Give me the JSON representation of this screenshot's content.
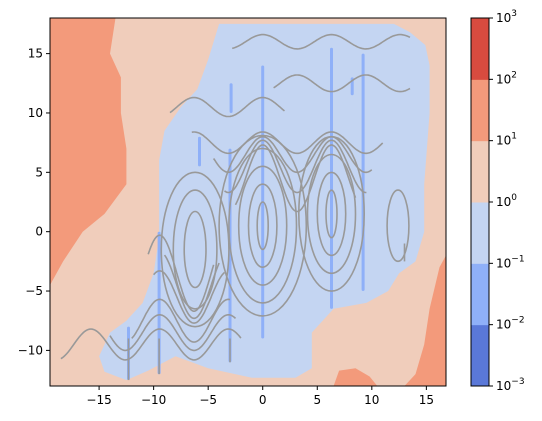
{
  "chart_data": {
    "type": "heatmap",
    "title": "",
    "xlabel": "",
    "ylabel": "",
    "xlim": [
      -19.5,
      16.8
    ],
    "ylim": [
      -13,
      18
    ],
    "x_ticks": [
      "−15",
      "−10",
      "−5",
      "0",
      "5",
      "10",
      "15"
    ],
    "x_tick_values": [
      -15,
      -10,
      -5,
      0,
      5,
      10,
      15
    ],
    "y_ticks": [
      "15",
      "10",
      "5",
      "0",
      "−5",
      "−10"
    ],
    "y_tick_values": [
      15,
      10,
      5,
      0,
      -5,
      -10
    ],
    "grid": false,
    "colorbar": {
      "scale": "log",
      "levels": [
        0.001,
        0.01,
        0.1,
        1,
        10,
        100,
        1000
      ],
      "level_labels": [
        {
          "base": "10",
          "exp": "3"
        },
        {
          "base": "10",
          "exp": "2"
        },
        {
          "base": "10",
          "exp": "1"
        },
        {
          "base": "10",
          "exp": "0"
        },
        {
          "base": "10",
          "exp": "−1"
        },
        {
          "base": "10",
          "exp": "−2"
        },
        {
          "base": "10",
          "exp": "−3"
        }
      ],
      "colors": [
        "#5a78d8",
        "#8fb0f8",
        "#c4d5f2",
        "#f0cdbb",
        "#f39a7b",
        "#d84b3f"
      ]
    },
    "regions": [
      {
        "name": "background",
        "level_range": [
          1,
          10
        ],
        "color": "#f0cdbb"
      },
      {
        "name": "upper-left band",
        "level_range": [
          10,
          100
        ],
        "color": "#f39a7b",
        "points": [
          [
            -19.5,
            18
          ],
          [
            -13.5,
            18
          ],
          [
            -14,
            15
          ],
          [
            -13,
            13
          ],
          [
            -13,
            10
          ],
          [
            -12.5,
            7
          ],
          [
            -12.5,
            4
          ],
          [
            -14.5,
            1.5
          ],
          [
            -16.5,
            0
          ],
          [
            -18.3,
            -2.5
          ],
          [
            -19.5,
            -4.5
          ]
        ]
      },
      {
        "name": "right edge",
        "level_range": [
          10,
          100
        ],
        "color": "#f39a7b",
        "points": [
          [
            16.8,
            -13
          ],
          [
            16.8,
            -2
          ],
          [
            16.2,
            -3
          ],
          [
            15.3,
            -6.5
          ],
          [
            14.8,
            -9.5
          ],
          [
            14,
            -12
          ],
          [
            13,
            -13
          ]
        ]
      },
      {
        "name": "bottom patch",
        "level_range": [
          10,
          100
        ],
        "color": "#f39a7b",
        "points": [
          [
            6.5,
            -13
          ],
          [
            7,
            -11.7
          ],
          [
            8.5,
            -11.5
          ],
          [
            9.8,
            -12.2
          ],
          [
            10.5,
            -13
          ]
        ]
      },
      {
        "name": "center band",
        "level_range": [
          0.1,
          1
        ],
        "color": "#c4d5f2",
        "points": [
          [
            -4,
            17.5
          ],
          [
            14.5,
            17.5
          ],
          [
            15.3,
            14
          ],
          [
            15.3,
            10
          ],
          [
            14.8,
            4
          ],
          [
            14.8,
            0
          ],
          [
            14,
            -2.5
          ],
          [
            12.5,
            -3.5
          ],
          [
            11.5,
            -5
          ],
          [
            9.5,
            -6
          ],
          [
            6.5,
            -6.5
          ],
          [
            4.5,
            -8.5
          ],
          [
            4.5,
            -11.5
          ],
          [
            3,
            -12.3
          ],
          [
            -1,
            -12.3
          ],
          [
            -5,
            -11.5
          ],
          [
            -8,
            -10.5
          ],
          [
            -10.5,
            -11.7
          ],
          [
            -12.5,
            -12.5
          ],
          [
            -14.5,
            -11.8
          ],
          [
            -15,
            -10.5
          ],
          [
            -14,
            -8.5
          ],
          [
            -12.5,
            -7.5
          ],
          [
            -11,
            -6
          ],
          [
            -10,
            -3.5
          ],
          [
            -9.5,
            -0.5
          ],
          [
            -9.5,
            3
          ],
          [
            -9.5,
            6
          ],
          [
            -9,
            8.5
          ],
          [
            -7.5,
            10.5
          ],
          [
            -6,
            12
          ],
          [
            -5,
            14.5
          ]
        ]
      },
      {
        "name": "top-right notch",
        "level_range": [
          1,
          10
        ],
        "color": "#f0cdbb",
        "points": [
          [
            11,
            18
          ],
          [
            16.8,
            18
          ],
          [
            16.8,
            14
          ],
          [
            15.2,
            15.5
          ],
          [
            13.5,
            16.8
          ]
        ]
      },
      {
        "name": "spike x=-12.3",
        "level_range": [
          0.01,
          0.1
        ],
        "color": "#8fb0f8",
        "x": -12.3,
        "y_range": [
          -12.5,
          -8
        ]
      },
      {
        "name": "spike x=-9.5",
        "level_range": [
          0.01,
          0.1
        ],
        "color": "#8fb0f8",
        "x": -9.5,
        "y_range": [
          -12,
          0
        ]
      },
      {
        "name": "spike x=-3",
        "level_range": [
          0.01,
          0.1
        ],
        "color": "#8fb0f8",
        "x": -3,
        "y_range": [
          -11,
          7
        ]
      },
      {
        "name": "spike x=-5.8",
        "level_range": [
          0.01,
          0.1
        ],
        "color": "#8fb0f8",
        "x": -5.8,
        "y_range": [
          5.5,
          8
        ]
      },
      {
        "name": "spike x=0",
        "level_range": [
          0.01,
          0.1
        ],
        "color": "#8fb0f8",
        "x": 0,
        "y_range": [
          -9,
          14
        ]
      },
      {
        "name": "spike x=6.3",
        "level_range": [
          0.01,
          0.1
        ],
        "color": "#8fb0f8",
        "x": 6.3,
        "y_range": [
          -6.5,
          15.5
        ]
      },
      {
        "name": "spike x=9.2",
        "level_range": [
          0.01,
          0.1
        ],
        "color": "#8fb0f8",
        "x": 9.2,
        "y_range": [
          -5,
          15
        ]
      },
      {
        "name": "spike x=-2.9 top",
        "level_range": [
          0.01,
          0.1
        ],
        "color": "#8fb0f8",
        "x": -2.9,
        "y_range": [
          10,
          12.5
        ]
      },
      {
        "name": "spike x=8.2 top",
        "level_range": [
          0.01,
          0.1
        ],
        "color": "#8fb0f8",
        "x": 8.2,
        "y_range": [
          11.5,
          13
        ]
      }
    ],
    "contour_lines_color": "#999999",
    "contour_lines": [
      {
        "kind": "wave",
        "x_start": -2.8,
        "x_end": 13.5,
        "y_base": 16,
        "amplitude": 0.6,
        "period": 6.3,
        "phase": 0
      },
      {
        "kind": "wave",
        "x_start": 1,
        "x_end": 13.5,
        "y_base": 12.5,
        "amplitude": 0.7,
        "period": 6.3,
        "phase": 3.14
      },
      {
        "kind": "wave",
        "x_start": -8.5,
        "x_end": 2,
        "y_base": 10.5,
        "amplitude": 0.8,
        "period": 6.3,
        "phase": 0
      },
      {
        "kind": "wave",
        "x_start": -6.5,
        "x_end": 11,
        "y_base": 7.5,
        "amplitude": 0.9,
        "period": 6.3,
        "phase": 0
      },
      {
        "kind": "wave",
        "x_start": -4.5,
        "x_end": 10,
        "y_base": 6.5,
        "amplitude": 1.5,
        "period": 6.3,
        "phase": 0
      },
      {
        "kind": "wave",
        "x_start": -3.5,
        "x_end": 9.5,
        "y_base": 5.5,
        "amplitude": 2.2,
        "period": 6.3,
        "phase": 0
      },
      {
        "kind": "wave",
        "x_start": -2.5,
        "x_end": 8.5,
        "y_base": 4.5,
        "amplitude": 2.8,
        "period": 6.3,
        "phase": 0
      },
      {
        "kind": "wave",
        "x_start": -18.5,
        "x_end": -2,
        "y_base": -9.5,
        "amplitude": 1.3,
        "period": 6.3,
        "phase": 3.14
      },
      {
        "kind": "wave",
        "x_start": -14,
        "x_end": -2.5,
        "y_base": -8.5,
        "amplitude": 1.5,
        "period": 6.3,
        "phase": 3.14
      },
      {
        "kind": "wave",
        "x_start": -12,
        "x_end": -3,
        "y_base": -7.5,
        "amplitude": 1.8,
        "period": 6.3,
        "phase": 3.14
      },
      {
        "kind": "wave",
        "x_start": -10,
        "x_end": -3.5,
        "y_base": -5.5,
        "amplitude": 2.2,
        "period": 6.3,
        "phase": 3.14
      },
      {
        "kind": "wave",
        "x_start": -9,
        "x_end": -4,
        "y_base": -4.5,
        "amplitude": 2.8,
        "period": 6.3,
        "phase": 3.14
      },
      {
        "kind": "wave",
        "x_start": -10.5,
        "x_end": -4.5,
        "y_base": -3.5,
        "amplitude": 3.2,
        "period": 6.3,
        "phase": 3.14
      },
      {
        "kind": "ellipse",
        "cx": 0,
        "cy": 0.5,
        "rx": 0.5,
        "ry": 2
      },
      {
        "kind": "ellipse",
        "cx": 0,
        "cy": 0.5,
        "rx": 1.3,
        "ry": 3.5
      },
      {
        "kind": "ellipse",
        "cx": 0,
        "cy": 0.5,
        "rx": 2.2,
        "ry": 5
      },
      {
        "kind": "ellipse",
        "cx": 0,
        "cy": 0.5,
        "rx": 3.1,
        "ry": 6.5
      },
      {
        "kind": "ellipse",
        "cx": 0,
        "cy": 0.5,
        "rx": 4,
        "ry": 7.6
      },
      {
        "kind": "ellipse",
        "cx": 6.3,
        "cy": 1.5,
        "rx": 0.5,
        "ry": 2
      },
      {
        "kind": "ellipse",
        "cx": 6.3,
        "cy": 1.5,
        "rx": 1.3,
        "ry": 3.5
      },
      {
        "kind": "ellipse",
        "cx": 6.3,
        "cy": 1.5,
        "rx": 2.2,
        "ry": 5
      },
      {
        "kind": "ellipse",
        "cx": 6.3,
        "cy": 1.5,
        "rx": 3,
        "ry": 6.5
      },
      {
        "kind": "ellipse",
        "cx": -6.2,
        "cy": -1.5,
        "rx": 1,
        "ry": 3.2
      },
      {
        "kind": "ellipse",
        "cx": -6.2,
        "cy": -1.5,
        "rx": 2,
        "ry": 5
      },
      {
        "kind": "ellipse",
        "cx": -6.2,
        "cy": -1.5,
        "rx": 3.1,
        "ry": 6.5
      },
      {
        "kind": "ellipse",
        "cx": 12.4,
        "cy": 0.5,
        "rx": 1,
        "ry": 3
      },
      {
        "kind": "vline",
        "x": -12.3,
        "y_range": [
          -12.5,
          -9
        ]
      },
      {
        "kind": "vline",
        "x": -9.5,
        "y_range": [
          -12,
          -9
        ]
      },
      {
        "kind": "vline",
        "x": -3,
        "y_range": [
          -11,
          -9
        ]
      },
      {
        "kind": "vline",
        "x": 13,
        "y_range": [
          -2.5,
          -1
        ]
      }
    ]
  }
}
